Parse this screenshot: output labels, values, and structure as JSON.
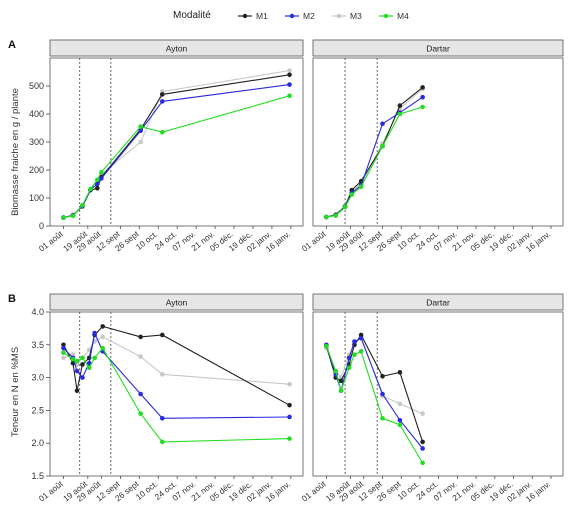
{
  "legend": {
    "title": "Modalité",
    "entries": [
      {
        "name": "M1",
        "color": "#222222"
      },
      {
        "name": "M2",
        "color": "#2a2ae0"
      },
      {
        "name": "M3",
        "color": "#c8c8c8"
      },
      {
        "name": "M4",
        "color": "#22dd22"
      }
    ]
  },
  "x_ticks": [
    "01 août",
    "19 août",
    "29 août",
    "12 sept",
    "26 sept",
    "10 oct.",
    "24 oct.",
    "07 nov.",
    "21 nov.",
    "05 déc.",
    "19 déc.",
    "02 janv.",
    "16 janv."
  ],
  "chart_data": [
    {
      "type": "line",
      "panel_label": "A",
      "ylabel": "Biomasse fraiche en g / plante",
      "ylim": [
        0,
        600
      ],
      "yticks": [
        0,
        100,
        200,
        300,
        400,
        500
      ],
      "facets": [
        {
          "name": "Ayton",
          "vlines": [
            "13 août",
            "05 sept"
          ],
          "series": [
            {
              "name": "M1",
              "points": [
                [
                  "01 août",
                  30
                ],
                [
                  "08 août",
                  38
                ],
                [
                  "15 août",
                  70
                ],
                [
                  "21 août",
                  128
                ],
                [
                  "26 août",
                  135
                ],
                [
                  "29 août",
                  175
                ],
                [
                  "27 sept",
                  345
                ],
                [
                  "13 oct.",
                  470
                ],
                [
                  "15 janv.",
                  540
                ]
              ]
            },
            {
              "name": "M2",
              "points": [
                [
                  "01 août",
                  30
                ],
                [
                  "08 août",
                  38
                ],
                [
                  "15 août",
                  72
                ],
                [
                  "21 août",
                  130
                ],
                [
                  "26 août",
                  150
                ],
                [
                  "29 août",
                  170
                ],
                [
                  "27 sept",
                  340
                ],
                [
                  "13 oct.",
                  445
                ],
                [
                  "15 janv.",
                  505
                ]
              ]
            },
            {
              "name": "M3",
              "points": [
                [
                  "01 août",
                  30
                ],
                [
                  "08 août",
                  40
                ],
                [
                  "15 août",
                  70
                ],
                [
                  "21 août",
                  130
                ],
                [
                  "26 août",
                  155
                ],
                [
                  "29 août",
                  185
                ],
                [
                  "27 sept",
                  300
                ],
                [
                  "13 oct.",
                  480
                ],
                [
                  "15 janv.",
                  555
                ]
              ]
            },
            {
              "name": "M4",
              "points": [
                [
                  "01 août",
                  30
                ],
                [
                  "08 août",
                  36
                ],
                [
                  "15 août",
                  74
                ],
                [
                  "21 août",
                  132
                ],
                [
                  "26 août",
                  165
                ],
                [
                  "29 août",
                  192
                ],
                [
                  "27 sept",
                  355
                ],
                [
                  "13 oct.",
                  335
                ],
                [
                  "15 janv.",
                  465
                ]
              ]
            }
          ]
        },
        {
          "name": "Dartar",
          "vlines": [
            "15 août",
            "08 sept"
          ],
          "series": [
            {
              "name": "M1",
              "points": [
                [
                  "01 août",
                  32
                ],
                [
                  "08 août",
                  40
                ],
                [
                  "15 août",
                  70
                ],
                [
                  "20 août",
                  128
                ],
                [
                  "27 août",
                  160
                ],
                [
                  "12 sept",
                  285
                ],
                [
                  "25 sept",
                  430
                ],
                [
                  "12 oct.",
                  495
                ]
              ]
            },
            {
              "name": "M2",
              "points": [
                [
                  "01 août",
                  32
                ],
                [
                  "08 août",
                  38
                ],
                [
                  "15 août",
                  68
                ],
                [
                  "20 août",
                  118
                ],
                [
                  "27 août",
                  145
                ],
                [
                  "12 sept",
                  365
                ],
                [
                  "25 sept",
                  405
                ],
                [
                  "12 oct.",
                  460
                ]
              ]
            },
            {
              "name": "M3",
              "points": [
                [
                  "01 août",
                  32
                ],
                [
                  "08 août",
                  40
                ],
                [
                  "15 août",
                  72
                ],
                [
                  "20 août",
                  120
                ],
                [
                  "27 août",
                  150
                ],
                [
                  "12 sept",
                  295
                ],
                [
                  "25 sept",
                  420
                ],
                [
                  "12 oct.",
                  490
                ]
              ]
            },
            {
              "name": "M4",
              "points": [
                [
                  "01 août",
                  32
                ],
                [
                  "08 août",
                  37
                ],
                [
                  "15 août",
                  68
                ],
                [
                  "20 août",
                  112
                ],
                [
                  "27 août",
                  140
                ],
                [
                  "12 sept",
                  285
                ],
                [
                  "25 sept",
                  400
                ],
                [
                  "12 oct.",
                  425
                ]
              ]
            }
          ]
        }
      ]
    },
    {
      "type": "line",
      "panel_label": "B",
      "ylabel": "Teneur en N en %MS",
      "ylim": [
        1.5,
        4.0
      ],
      "yticks": [
        1.5,
        2.0,
        2.5,
        3.0,
        3.5,
        4.0
      ],
      "facets": [
        {
          "name": "Ayton",
          "vlines": [
            "13 août",
            "05 sept"
          ],
          "series": [
            {
              "name": "M1",
              "points": [
                [
                  "01 août",
                  3.5
                ],
                [
                  "08 août",
                  3.22
                ],
                [
                  "11 août",
                  2.8
                ],
                [
                  "15 août",
                  3.2
                ],
                [
                  "20 août",
                  3.3
                ],
                [
                  "24 août",
                  3.65
                ],
                [
                  "30 août",
                  3.78
                ],
                [
                  "27 sept",
                  3.62
                ],
                [
                  "13 oct.",
                  3.65
                ],
                [
                  "15 janv.",
                  2.58
                ]
              ]
            },
            {
              "name": "M2",
              "points": [
                [
                  "01 août",
                  3.45
                ],
                [
                  "08 août",
                  3.3
                ],
                [
                  "11 août",
                  3.1
                ],
                [
                  "15 août",
                  3.0
                ],
                [
                  "20 août",
                  3.22
                ],
                [
                  "24 août",
                  3.68
                ],
                [
                  "30 août",
                  3.4
                ],
                [
                  "27 sept",
                  2.75
                ],
                [
                  "13 oct.",
                  2.38
                ],
                [
                  "15 janv.",
                  2.4
                ]
              ]
            },
            {
              "name": "M3",
              "points": [
                [
                  "01 août",
                  3.3
                ],
                [
                  "08 août",
                  3.35
                ],
                [
                  "11 août",
                  3.2
                ],
                [
                  "15 août",
                  3.3
                ],
                [
                  "20 août",
                  3.42
                ],
                [
                  "24 août",
                  3.55
                ],
                [
                  "30 août",
                  3.62
                ],
                [
                  "27 sept",
                  3.32
                ],
                [
                  "13 oct.",
                  3.05
                ],
                [
                  "15 janv.",
                  2.9
                ]
              ]
            },
            {
              "name": "M4",
              "points": [
                [
                  "01 août",
                  3.38
                ],
                [
                  "08 août",
                  3.28
                ],
                [
                  "11 août",
                  3.25
                ],
                [
                  "15 août",
                  3.3
                ],
                [
                  "20 août",
                  3.15
                ],
                [
                  "24 août",
                  3.3
                ],
                [
                  "30 août",
                  3.45
                ],
                [
                  "27 sept",
                  2.45
                ],
                [
                  "13 oct.",
                  2.02
                ],
                [
                  "15 janv.",
                  2.07
                ]
              ]
            }
          ]
        },
        {
          "name": "Dartar",
          "vlines": [
            "15 août",
            "08 sept"
          ],
          "series": [
            {
              "name": "M1",
              "points": [
                [
                  "01 août",
                  3.48
                ],
                [
                  "08 août",
                  3.0
                ],
                [
                  "12 août",
                  2.95
                ],
                [
                  "18 août",
                  3.2
                ],
                [
                  "22 août",
                  3.5
                ],
                [
                  "27 août",
                  3.65
                ],
                [
                  "12 sept",
                  3.02
                ],
                [
                  "25 sept",
                  3.08
                ],
                [
                  "12 oct.",
                  2.02
                ]
              ]
            },
            {
              "name": "M2",
              "points": [
                [
                  "01 août",
                  3.5
                ],
                [
                  "08 août",
                  3.05
                ],
                [
                  "12 août",
                  2.8
                ],
                [
                  "18 août",
                  3.3
                ],
                [
                  "22 août",
                  3.55
                ],
                [
                  "27 août",
                  3.6
                ],
                [
                  "12 sept",
                  2.75
                ],
                [
                  "25 sept",
                  2.35
                ],
                [
                  "12 oct.",
                  1.92
                ]
              ]
            },
            {
              "name": "M3",
              "points": [
                [
                  "01 août",
                  3.45
                ],
                [
                  "08 août",
                  3.1
                ],
                [
                  "12 août",
                  3.0
                ],
                [
                  "18 août",
                  3.35
                ],
                [
                  "22 août",
                  3.5
                ],
                [
                  "27 août",
                  3.62
                ],
                [
                  "12 sept",
                  2.72
                ],
                [
                  "25 sept",
                  2.6
                ],
                [
                  "12 oct.",
                  2.45
                ]
              ]
            },
            {
              "name": "M4",
              "points": [
                [
                  "01 août",
                  3.48
                ],
                [
                  "08 août",
                  3.1
                ],
                [
                  "12 août",
                  2.8
                ],
                [
                  "18 août",
                  3.15
                ],
                [
                  "22 août",
                  3.35
                ],
                [
                  "27 août",
                  3.4
                ],
                [
                  "12 sept",
                  2.38
                ],
                [
                  "25 sept",
                  2.28
                ],
                [
                  "12 oct.",
                  1.7
                ]
              ]
            }
          ]
        }
      ]
    }
  ]
}
